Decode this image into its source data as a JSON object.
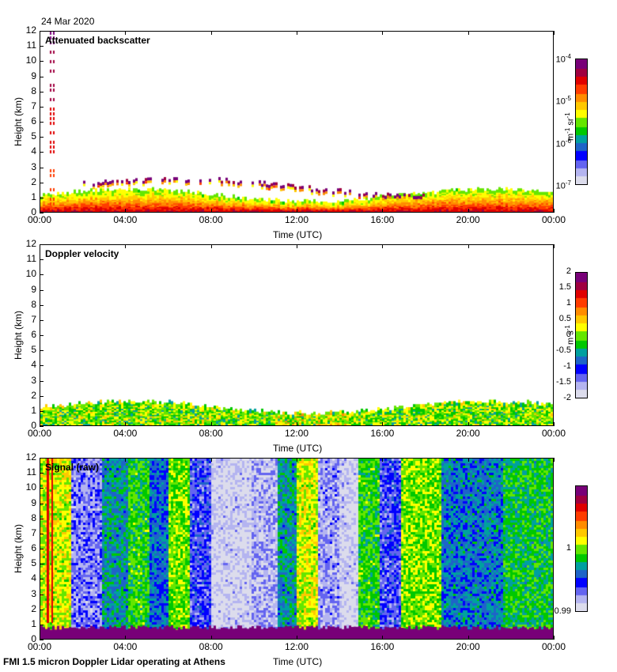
{
  "date": "24 Mar 2020",
  "footer": "FMI 1.5 micron Doppler Lidar operating at Athens",
  "chart_data": [
    {
      "type": "heatmap",
      "title": "Attenuated backscatter",
      "xlabel": "Time (UTC)",
      "ylabel": "Height (km)",
      "xticks": [
        "00:00",
        "04:00",
        "08:00",
        "12:00",
        "16:00",
        "20:00",
        "00:00"
      ],
      "yticks": [
        "0",
        "1",
        "2",
        "3",
        "4",
        "5",
        "6",
        "7",
        "8",
        "9",
        "10",
        "11",
        "12"
      ],
      "ylim": [
        0,
        12
      ],
      "colorbar": {
        "unit": "m-1 sr-1",
        "unit_parts": [
          "m",
          "-1",
          " sr",
          "-1"
        ],
        "scale": "log",
        "range": [
          1e-07,
          0.0001
        ],
        "ticks": [
          {
            "base": "10",
            "exp": "-4",
            "value": 0.0001
          },
          {
            "base": "10",
            "exp": "-5",
            "value": 1e-05
          },
          {
            "base": "10",
            "exp": "-6",
            "value": 1e-06
          },
          {
            "base": "10",
            "exp": "-7",
            "value": 1e-07
          }
        ]
      },
      "features": {
        "boundary_layer_top_km": [
          0.8,
          1.5
        ],
        "cloud_layer_km": [
          1.5,
          2.6
        ]
      }
    },
    {
      "type": "heatmap",
      "title": "Doppler velocity",
      "xlabel": "Time (UTC)",
      "ylabel": "Height (km)",
      "xticks": [
        "00:00",
        "04:00",
        "08:00",
        "12:00",
        "16:00",
        "20:00",
        "00:00"
      ],
      "yticks": [
        "0",
        "1",
        "2",
        "3",
        "4",
        "5",
        "6",
        "7",
        "8",
        "9",
        "10",
        "11",
        "12"
      ],
      "ylim": [
        0,
        12
      ],
      "colorbar": {
        "unit": "m s-1",
        "unit_parts": [
          "m s",
          "-1"
        ],
        "scale": "linear",
        "range": [
          -2,
          2
        ],
        "ticks": [
          "2",
          "1.5",
          "1",
          "0.5",
          "0",
          "-0.5",
          "-1",
          "-1.5",
          "-2"
        ]
      }
    },
    {
      "type": "heatmap",
      "title": "Signal (raw)",
      "xlabel": "Time (UTC)",
      "ylabel": "Height (km)",
      "xticks": [
        "00:00",
        "04:00",
        "08:00",
        "12:00",
        "16:00",
        "20:00",
        "00:00"
      ],
      "yticks": [
        "0",
        "1",
        "2",
        "3",
        "4",
        "5",
        "6",
        "7",
        "8",
        "9",
        "10",
        "11",
        "12"
      ],
      "ylim": [
        0,
        12
      ],
      "colorbar": {
        "unit": "",
        "scale": "linear",
        "range": [
          0.99,
          1.01
        ],
        "ticks": [
          "1",
          "0.99"
        ]
      }
    }
  ],
  "colors": {
    "palette": [
      "#dcdcec",
      "#b4b4f0",
      "#6464f0",
      "#0000ff",
      "#1e64c8",
      "#00a0a0",
      "#00c800",
      "#64e600",
      "#ffff00",
      "#ffc800",
      "#ff8c00",
      "#ff3c00",
      "#e00000",
      "#a00040",
      "#780078"
    ]
  }
}
